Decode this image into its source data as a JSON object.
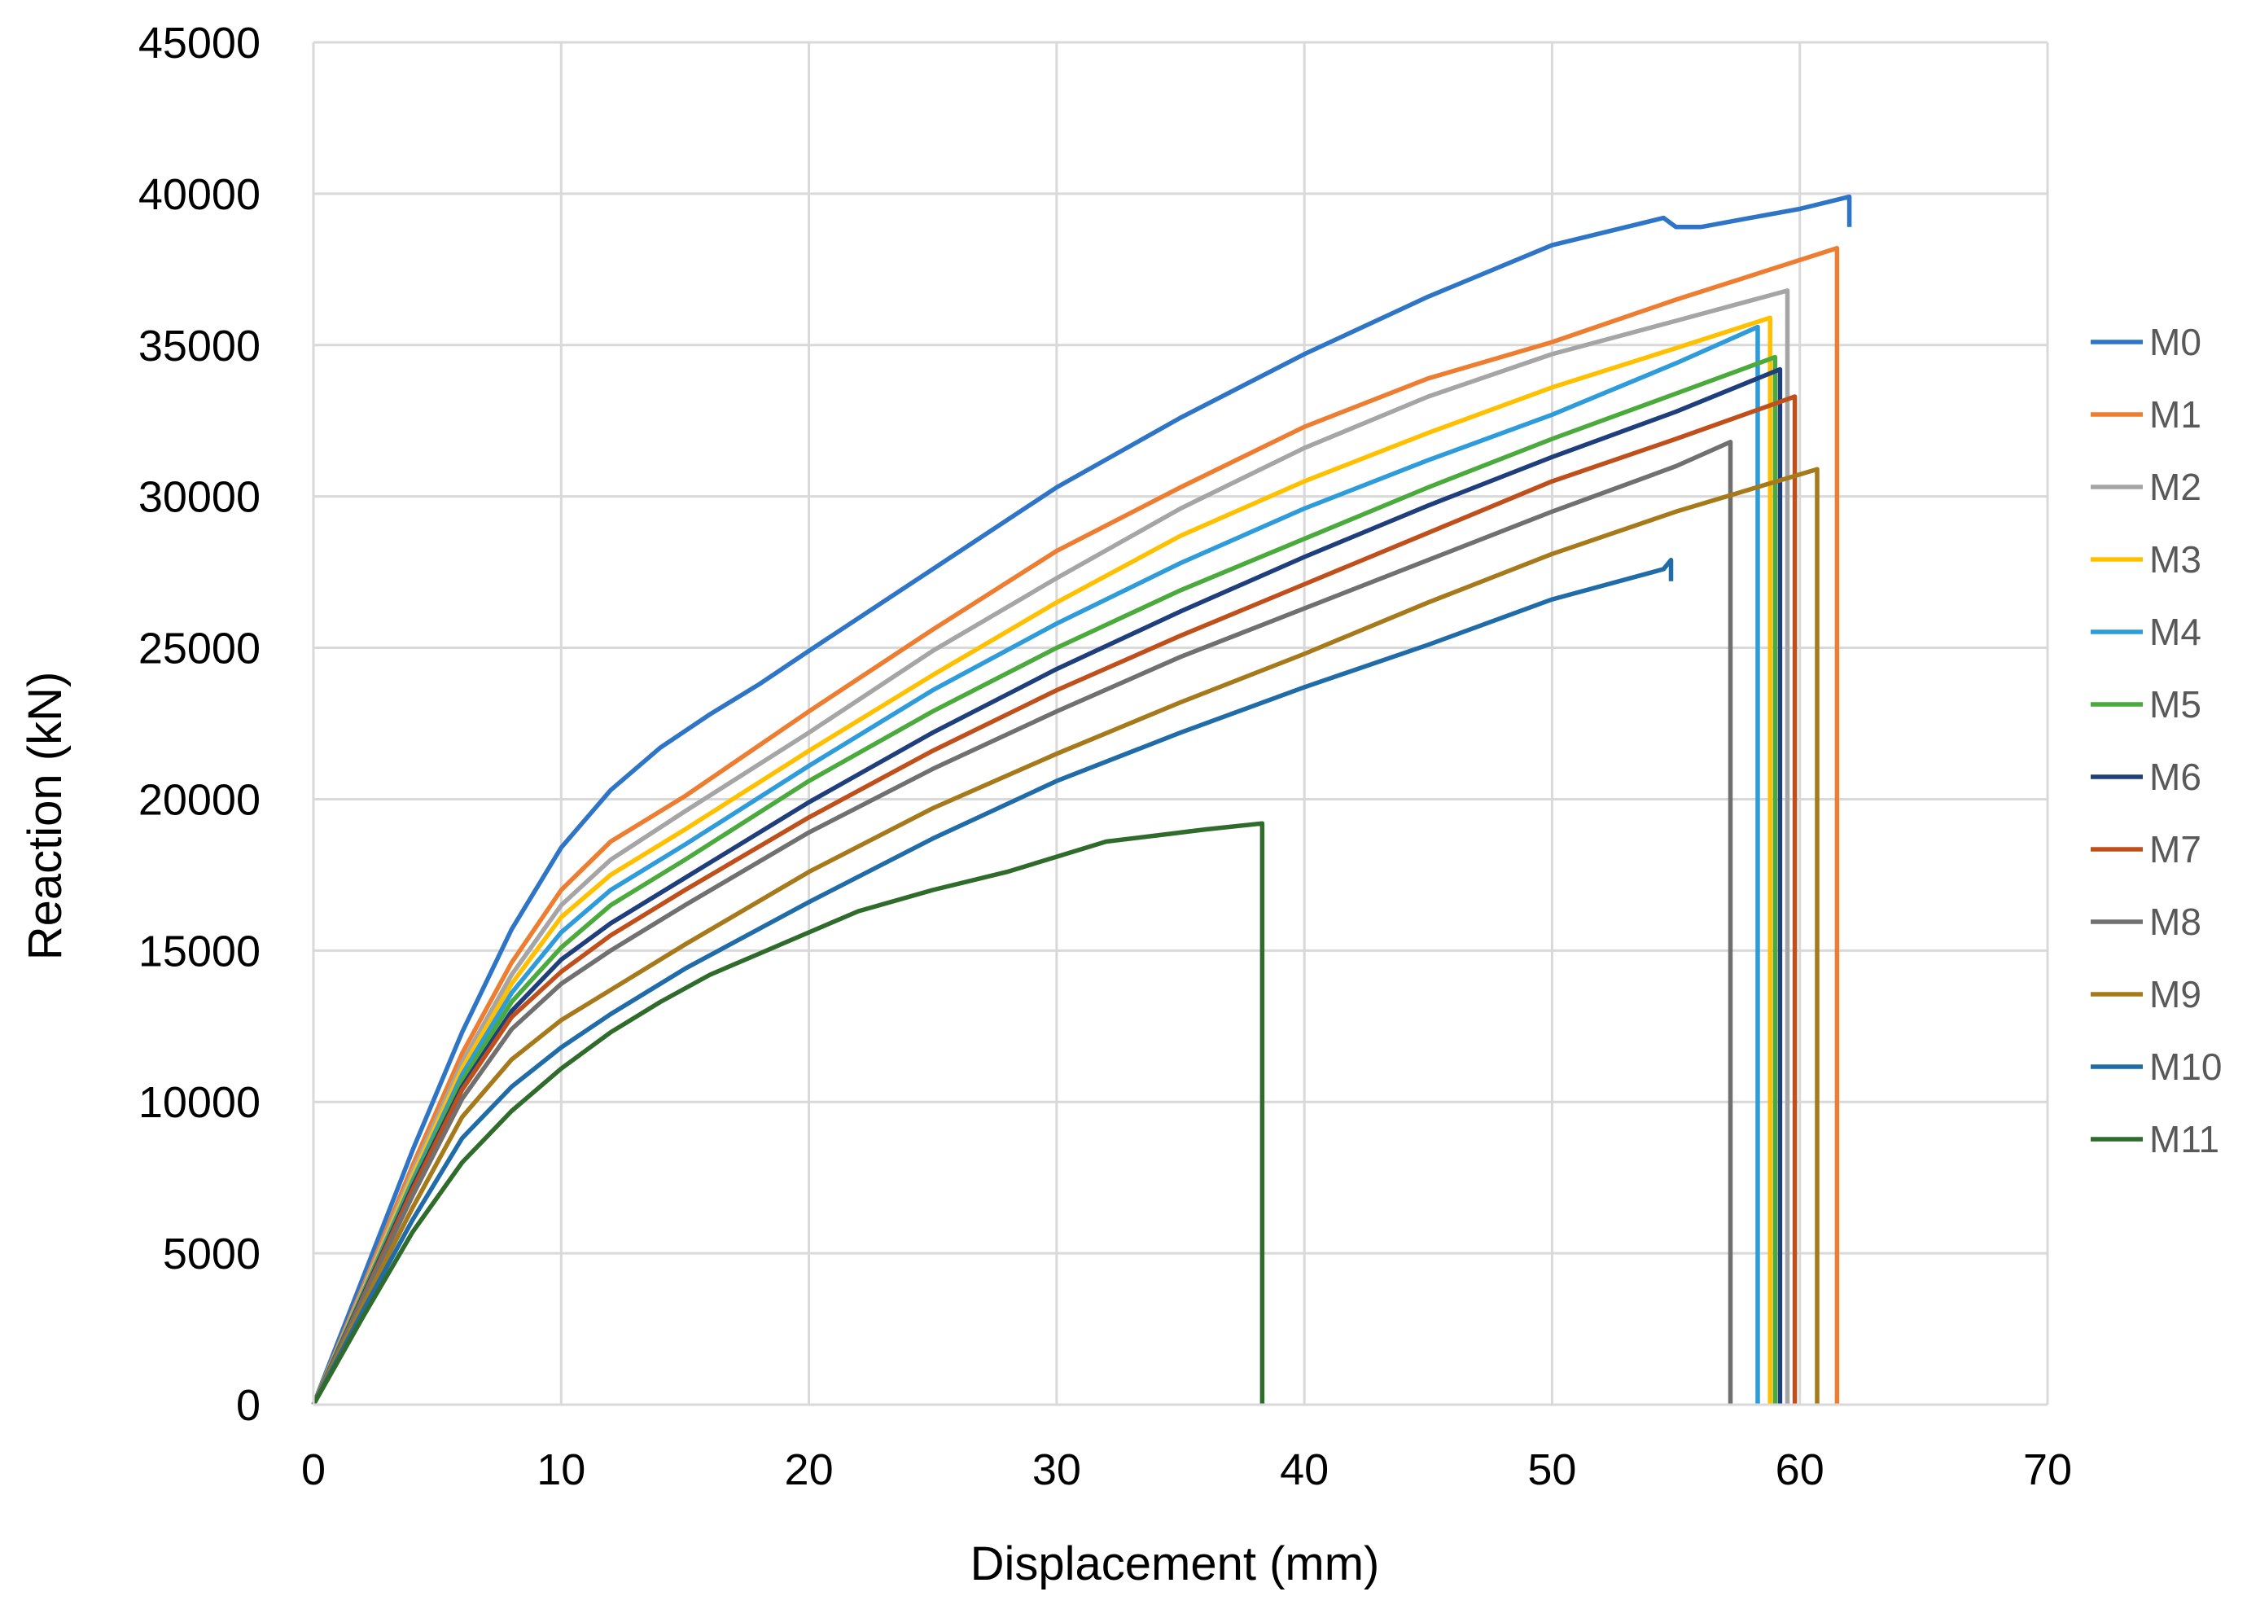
{
  "chart_data": {
    "type": "line",
    "title": "",
    "xlabel": "Displacement (mm)",
    "ylabel": "Reaction (kN)",
    "xlim": [
      0,
      70
    ],
    "ylim": [
      0,
      45000
    ],
    "xticks": [
      0,
      10,
      20,
      30,
      40,
      50,
      60,
      70
    ],
    "yticks": [
      0,
      5000,
      10000,
      15000,
      20000,
      25000,
      30000,
      35000,
      40000,
      45000
    ],
    "grid": true,
    "legend_position": "right",
    "series": [
      {
        "name": "M0",
        "color": "#2E75C8",
        "x": [
          0,
          2,
          4,
          6,
          8,
          10,
          12,
          14,
          16,
          18,
          20,
          25,
          30,
          35,
          40,
          45,
          50,
          54.5,
          55,
          56,
          58,
          60,
          62,
          62,
          62
        ],
        "y": [
          0,
          4200,
          8400,
          12300,
          15700,
          18400,
          20300,
          21700,
          22800,
          23800,
          24900,
          27600,
          30300,
          32600,
          34700,
          36600,
          38300,
          39200,
          38900,
          38900,
          39200,
          39500,
          39900,
          39900,
          38900
        ]
      },
      {
        "name": "M1",
        "color": "#ED7D31",
        "x": [
          0,
          2,
          4,
          6,
          8,
          10,
          12,
          15,
          20,
          25,
          30,
          35,
          40,
          45,
          50,
          55,
          61.5,
          61.5
        ],
        "y": [
          0,
          3900,
          7900,
          11600,
          14600,
          17000,
          18600,
          20100,
          22900,
          25600,
          28200,
          30300,
          32300,
          33900,
          35100,
          36500,
          38200,
          0
        ]
      },
      {
        "name": "M2",
        "color": "#A5A5A5",
        "x": [
          0,
          2,
          4,
          6,
          8,
          10,
          12,
          15,
          20,
          25,
          30,
          35,
          40,
          45,
          50,
          55,
          59.5,
          59.5
        ],
        "y": [
          0,
          3800,
          7700,
          11300,
          14200,
          16500,
          18000,
          19600,
          22200,
          24900,
          27300,
          29600,
          31600,
          33300,
          34700,
          35800,
          36800,
          0
        ]
      },
      {
        "name": "M3",
        "color": "#FFC000",
        "x": [
          0,
          2,
          4,
          6,
          8,
          10,
          12,
          15,
          20,
          25,
          30,
          35,
          40,
          45,
          50,
          55,
          58.8,
          58.8
        ],
        "y": [
          0,
          3750,
          7550,
          11100,
          13900,
          16100,
          17500,
          19000,
          21600,
          24100,
          26500,
          28700,
          30500,
          32100,
          33600,
          34900,
          35900,
          0
        ]
      },
      {
        "name": "M4",
        "color": "#2E9BDA",
        "x": [
          0,
          2,
          4,
          6,
          8,
          10,
          12,
          15,
          20,
          25,
          30,
          35,
          40,
          45,
          50,
          55,
          58.3,
          58.3
        ],
        "y": [
          0,
          3700,
          7400,
          10900,
          13600,
          15600,
          17000,
          18500,
          21100,
          23600,
          25800,
          27800,
          29600,
          31200,
          32700,
          34400,
          35600,
          0
        ]
      },
      {
        "name": "M5",
        "color": "#4AAA3C",
        "x": [
          0,
          2,
          4,
          6,
          8,
          10,
          12,
          15,
          20,
          25,
          30,
          35,
          40,
          45,
          50,
          55,
          59,
          59
        ],
        "y": [
          0,
          3650,
          7300,
          10700,
          13300,
          15100,
          16500,
          18000,
          20600,
          22900,
          25000,
          26900,
          28600,
          30300,
          31900,
          33400,
          34600,
          0
        ]
      },
      {
        "name": "M6",
        "color": "#1F3E7C",
        "x": [
          0,
          2,
          4,
          6,
          8,
          10,
          12,
          15,
          20,
          25,
          30,
          35,
          40,
          45,
          50,
          55,
          59.2,
          59.2
        ],
        "y": [
          0,
          3600,
          7200,
          10500,
          13000,
          14700,
          15900,
          17400,
          19900,
          22200,
          24300,
          26200,
          28000,
          29700,
          31300,
          32800,
          34200,
          0
        ]
      },
      {
        "name": "M7",
        "color": "#C0501B",
        "x": [
          0,
          2,
          4,
          6,
          8,
          10,
          12,
          15,
          20,
          25,
          30,
          35,
          40,
          45,
          50,
          55,
          59.8,
          59.8
        ],
        "y": [
          0,
          3550,
          7100,
          10400,
          12800,
          14300,
          15500,
          17000,
          19400,
          21600,
          23600,
          25400,
          27100,
          28800,
          30500,
          31900,
          33300,
          0
        ]
      },
      {
        "name": "M8",
        "color": "#707070",
        "x": [
          0,
          2,
          4,
          6,
          8,
          10,
          12,
          15,
          20,
          25,
          30,
          35,
          40,
          45,
          50,
          55,
          57.2,
          57.2
        ],
        "y": [
          0,
          3500,
          6900,
          10100,
          12400,
          13900,
          15000,
          16500,
          18900,
          21000,
          22900,
          24700,
          26300,
          27900,
          29500,
          31000,
          31800,
          0
        ]
      },
      {
        "name": "M9",
        "color": "#A67A1A",
        "x": [
          0,
          2,
          4,
          6,
          8,
          10,
          12,
          15,
          20,
          25,
          30,
          35,
          40,
          45,
          50,
          55,
          60.7,
          60.7
        ],
        "y": [
          0,
          3300,
          6500,
          9500,
          11400,
          12700,
          13700,
          15200,
          17600,
          19700,
          21500,
          23200,
          24800,
          26500,
          28100,
          29500,
          30900,
          0
        ]
      },
      {
        "name": "M10",
        "color": "#1F6CA8",
        "x": [
          0,
          2,
          4,
          6,
          8,
          10,
          12,
          15,
          20,
          25,
          30,
          35,
          40,
          45,
          50,
          54.5,
          54.8,
          54.8
        ],
        "y": [
          0,
          3100,
          6100,
          8800,
          10500,
          11800,
          12900,
          14400,
          16600,
          18700,
          20600,
          22200,
          23700,
          25100,
          26600,
          27600,
          27900,
          27200
        ]
      },
      {
        "name": "M11",
        "color": "#2F6B2A",
        "x": [
          0,
          2,
          4,
          6,
          8,
          10,
          12,
          14,
          16,
          18,
          20,
          22,
          25,
          28,
          30,
          32,
          34,
          36,
          38.3,
          38.3
        ],
        "y": [
          0,
          2900,
          5700,
          8000,
          9700,
          11100,
          12300,
          13300,
          14200,
          14900,
          15600,
          16300,
          17000,
          17600,
          18100,
          18600,
          18800,
          19000,
          19200,
          0
        ]
      }
    ]
  }
}
